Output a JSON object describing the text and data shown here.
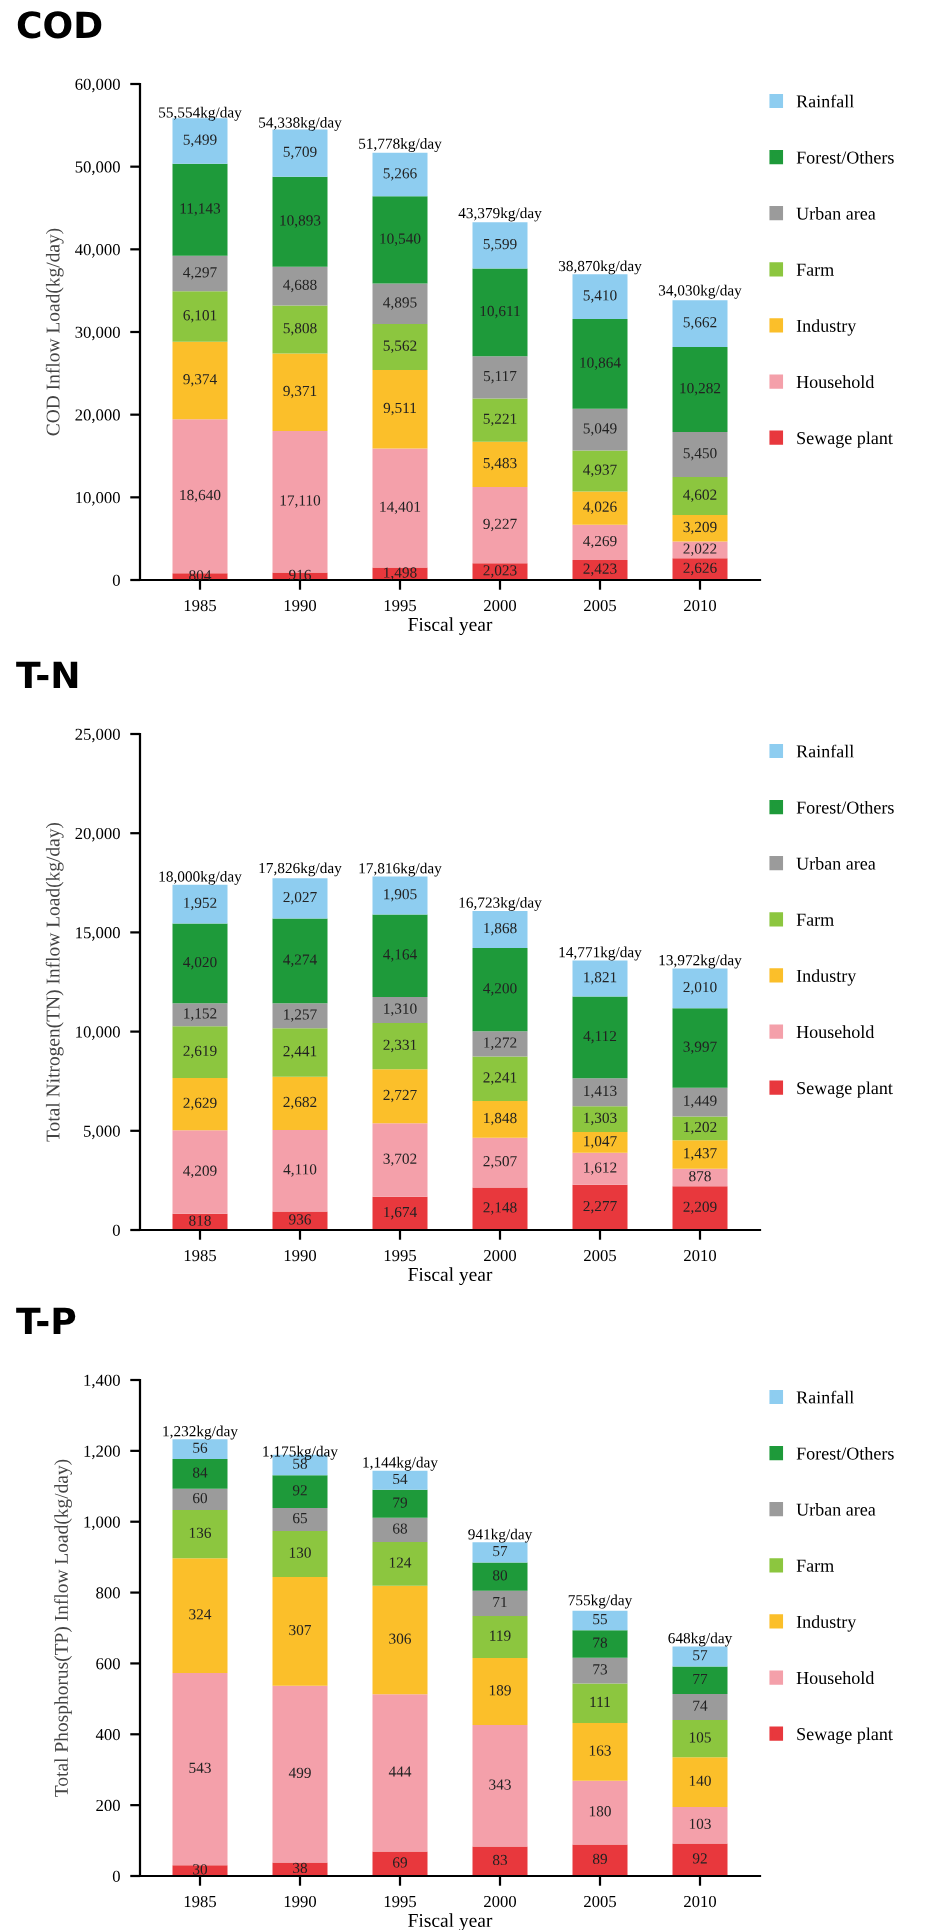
{
  "chart_data": [
    {
      "type": "bar",
      "title": "COD",
      "ylabel": "COD Inflow Load(kg/day)",
      "xlabel": "Fiscal year",
      "stacked": true,
      "legend": "right",
      "grid": false,
      "categories": [
        "1985",
        "1990",
        "1995",
        "2000",
        "2005",
        "2010"
      ],
      "ylim": [
        0,
        60000
      ],
      "yticks": [
        {
          "value": 0,
          "label": "0"
        },
        {
          "value": 10000,
          "label": "10,000"
        },
        {
          "value": 20000,
          "label": "20,000"
        },
        {
          "value": 30000,
          "label": "30,000"
        },
        {
          "value": 40000,
          "label": "40,000"
        },
        {
          "value": 50000,
          "label": "50,000"
        },
        {
          "value": 60000,
          "label": "60,000"
        }
      ],
      "annotations": [
        {
          "text": "55,554kg/day",
          "x": "1985",
          "y": 55554
        },
        {
          "text": "54,338kg/day",
          "x": "1990",
          "y": 54338
        },
        {
          "text": "51,778kg/day",
          "x": "1995",
          "y": 51778
        },
        {
          "text": "43,379kg/day",
          "x": "2000",
          "y": 43379
        },
        {
          "text": "38,870kg/day",
          "x": "2005",
          "y": 36978
        },
        {
          "text": "34,030kg/day",
          "x": "2010",
          "y": 34030
        }
      ],
      "series": [
        {
          "name": "Sewage plant",
          "color": "#e8383d",
          "values": [
            804,
            916,
            1498,
            2023,
            2423,
            2626
          ],
          "value_labels": [
            "804",
            "916",
            "1,498",
            "2,023",
            "2,423",
            "2,626"
          ]
        },
        {
          "name": "Household",
          "color": "#f4a0aa",
          "values": [
            18640,
            17110,
            14401,
            9227,
            4269,
            2022
          ],
          "value_labels": [
            "18,640",
            "17,110",
            "14,401",
            "9,227",
            "4,269",
            "2,022"
          ]
        },
        {
          "name": "Industry",
          "color": "#fbbf2a",
          "values": [
            9374,
            9371,
            9511,
            5483,
            4026,
            3209
          ],
          "value_labels": [
            "9,374",
            "9,371",
            "9,511",
            "5,483",
            "4,026",
            "3,209"
          ]
        },
        {
          "name": "Farm",
          "color": "#8cc63f",
          "values": [
            6101,
            5808,
            5562,
            5221,
            4937,
            4602
          ],
          "value_labels": [
            "6,101",
            "5,808",
            "5,562",
            "5,221",
            "4,937",
            "4,602"
          ]
        },
        {
          "name": "Urban area",
          "color": "#9b9b9b",
          "values": [
            4297,
            4688,
            4895,
            5117,
            5049,
            5450
          ],
          "value_labels": [
            "4,297",
            "4,688",
            "4,895",
            "5,117",
            "5,049",
            "5,450"
          ]
        },
        {
          "name": "Forest/Others",
          "color": "#1e9a3a",
          "values": [
            11143,
            10893,
            10540,
            10611,
            10864,
            10282
          ],
          "value_labels": [
            "11,143",
            "10,893",
            "10,540",
            "10,611",
            "10,864",
            "10,282"
          ]
        },
        {
          "name": "Rainfall",
          "color": "#8ecdf0",
          "values": [
            5499,
            5709,
            5266,
            5599,
            5410,
            5662
          ],
          "value_labels": [
            "5,499",
            "5,709",
            "5,266",
            "5,599",
            "5,410",
            "5,662"
          ]
        }
      ]
    },
    {
      "type": "bar",
      "title": "T-N",
      "ylabel": "Total Nitrogen(TN) Inflow Load(kg/day)",
      "xlabel": "Fiscal year",
      "stacked": true,
      "legend": "right",
      "grid": false,
      "categories": [
        "1985",
        "1990",
        "1995",
        "2000",
        "2005",
        "2010"
      ],
      "ylim": [
        0,
        25000
      ],
      "yticks": [
        {
          "value": 0,
          "label": "0"
        },
        {
          "value": 5000,
          "label": "5,000"
        },
        {
          "value": 10000,
          "label": "10,000"
        },
        {
          "value": 15000,
          "label": "15,000"
        },
        {
          "value": 20000,
          "label": "20,000"
        },
        {
          "value": 25000,
          "label": "25,000"
        }
      ],
      "annotations": [
        {
          "text": "18,000kg/day",
          "x": "1985",
          "y": 17399
        },
        {
          "text": "17,826kg/day",
          "x": "1990",
          "y": 17826
        },
        {
          "text": "17,816kg/day",
          "x": "1995",
          "y": 17816
        },
        {
          "text": "16,723kg/day",
          "x": "2000",
          "y": 16084
        },
        {
          "text": "14,771kg/day",
          "x": "2005",
          "y": 13585
        },
        {
          "text": "13,972kg/day",
          "x": "2010",
          "y": 13182
        }
      ],
      "series": [
        {
          "name": "Sewage plant",
          "color": "#e8383d",
          "values": [
            818,
            936,
            1674,
            2148,
            2277,
            2209
          ],
          "value_labels": [
            "818",
            "936",
            "1,674",
            "2,148",
            "2,277",
            "2,209"
          ]
        },
        {
          "name": "Household",
          "color": "#f4a0aa",
          "values": [
            4209,
            4110,
            3702,
            2507,
            1612,
            878
          ],
          "value_labels": [
            "4,209",
            "4,110",
            "3,702",
            "2,507",
            "1,612",
            "878"
          ]
        },
        {
          "name": "Industry",
          "color": "#fbbf2a",
          "values": [
            2629,
            2682,
            2727,
            1848,
            1047,
            1437
          ],
          "value_labels": [
            "2,629",
            "2,682",
            "2,727",
            "1,848",
            "1,047",
            "1,437"
          ]
        },
        {
          "name": "Farm",
          "color": "#8cc63f",
          "values": [
            2619,
            2441,
            2331,
            2241,
            1303,
            1202
          ],
          "value_labels": [
            "2,619",
            "2,441",
            "2,331",
            "2,241",
            "1,303",
            "1,202"
          ]
        },
        {
          "name": "Urban area",
          "color": "#9b9b9b",
          "values": [
            1152,
            1257,
            1310,
            1272,
            1413,
            1449
          ],
          "value_labels": [
            "1,152",
            "1,257",
            "1,310",
            "1,272",
            "1,413",
            "1,449"
          ]
        },
        {
          "name": "Forest/Others",
          "color": "#1e9a3a",
          "values": [
            4020,
            4274,
            4164,
            4200,
            4112,
            3997
          ],
          "value_labels": [
            "4,020",
            "4,274",
            "4,164",
            "4,200",
            "4,112",
            "3,997"
          ]
        },
        {
          "name": "Rainfall",
          "color": "#8ecdf0",
          "values": [
            1952,
            2027,
            1905,
            1868,
            1821,
            2010
          ],
          "value_labels": [
            "1,952",
            "2,027",
            "1,905",
            "1,868",
            "1,821",
            "2,010"
          ]
        }
      ]
    },
    {
      "type": "bar",
      "title": "T-P",
      "ylabel": "Total Phosphorus(TP) Inflow Load(kg/day)",
      "xlabel": "Fiscal year",
      "stacked": true,
      "data_labels": true,
      "legend": "right",
      "grid": false,
      "categories": [
        "1985",
        "1990",
        "1995",
        "2000",
        "2005",
        "2010"
      ],
      "ylim": [
        0,
        1400
      ],
      "yticks": [
        {
          "value": 0,
          "label": "0"
        },
        {
          "value": 200,
          "label": "200"
        },
        {
          "value": 400,
          "label": "400"
        },
        {
          "value": 600,
          "label": "600"
        },
        {
          "value": 800,
          "label": "800"
        },
        {
          "value": 1000,
          "label": "1,000"
        },
        {
          "value": 1200,
          "label": "1,200"
        },
        {
          "value": 1400,
          "label": "1,400"
        }
      ],
      "annotations": [
        {
          "text": "1,232kg/day",
          "x": "1985",
          "y": 1232
        },
        {
          "text": "1,175kg/day",
          "x": "1990",
          "y": 1175
        },
        {
          "text": "1,144kg/day",
          "x": "1995",
          "y": 1144
        },
        {
          "text": "941kg/day",
          "x": "2000",
          "y": 941
        },
        {
          "text": "755kg/day",
          "x": "2005",
          "y": 755
        },
        {
          "text": "648kg/day",
          "x": "2010",
          "y": 648
        }
      ],
      "series": [
        {
          "name": "Sewage plant",
          "color": "#e8383d",
          "values": [
            30,
            38,
            69,
            83,
            89,
            92
          ]
        },
        {
          "name": "Household",
          "color": "#f4a0aa",
          "values": [
            543,
            499,
            444,
            343,
            180,
            103
          ]
        },
        {
          "name": "Industry",
          "color": "#fbbf2a",
          "values": [
            324,
            307,
            306,
            189,
            163,
            140
          ]
        },
        {
          "name": "Farm",
          "color": "#8cc63f",
          "values": [
            136,
            130,
            124,
            119,
            111,
            105
          ]
        },
        {
          "name": "Urban area",
          "color": "#9b9b9b",
          "values": [
            60,
            65,
            68,
            71,
            73,
            74
          ]
        },
        {
          "name": "Forest/Others",
          "color": "#1e9a3a",
          "values": [
            84,
            92,
            79,
            80,
            78,
            77
          ]
        },
        {
          "name": "Rainfall",
          "color": "#8ecdf0",
          "values": [
            56,
            58,
            54,
            57,
            55,
            57
          ]
        }
      ]
    }
  ]
}
